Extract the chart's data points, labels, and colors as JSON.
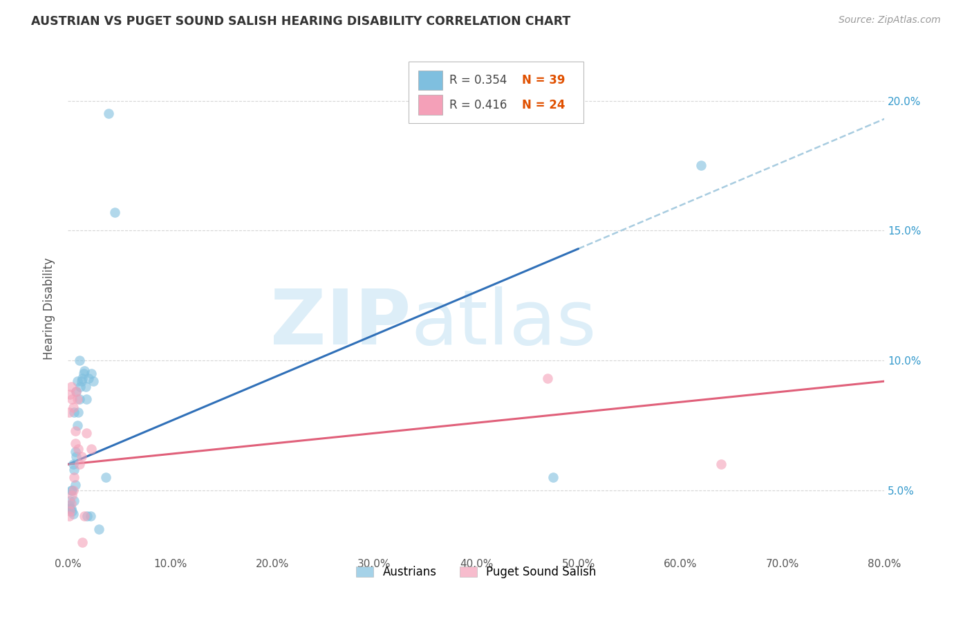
{
  "title": "AUSTRIAN VS PUGET SOUND SALISH HEARING DISABILITY CORRELATION CHART",
  "source": "Source: ZipAtlas.com",
  "ylabel": "Hearing Disability",
  "xlim": [
    0.0,
    0.8
  ],
  "ylim": [
    0.025,
    0.215
  ],
  "austrians_color": "#7fbfdf",
  "puget_color": "#f4a0b8",
  "blue_line_color": "#3070b8",
  "pink_line_color": "#e0607a",
  "dashed_line_color": "#a8cce0",
  "legend_R_austrians": "R = 0.354",
  "legend_N_austrians": "N = 39",
  "legend_R_puget": "R = 0.416",
  "legend_N_puget": "N = 24",
  "background_color": "#ffffff",
  "grid_color": "#cccccc",
  "watermark_zip": "ZIP",
  "watermark_atlas": "atlas",
  "watermark_color": "#ddeef8",
  "austrians_x": [
    0.001,
    0.002,
    0.002,
    0.003,
    0.003,
    0.004,
    0.004,
    0.005,
    0.005,
    0.006,
    0.006,
    0.006,
    0.007,
    0.007,
    0.008,
    0.008,
    0.009,
    0.009,
    0.01,
    0.011,
    0.011,
    0.012,
    0.013,
    0.014,
    0.015,
    0.016,
    0.017,
    0.018,
    0.019,
    0.02,
    0.022,
    0.023,
    0.025,
    0.03,
    0.037,
    0.04,
    0.046,
    0.475,
    0.62
  ],
  "austrians_y": [
    0.044,
    0.043,
    0.046,
    0.043,
    0.05,
    0.042,
    0.05,
    0.041,
    0.06,
    0.046,
    0.058,
    0.08,
    0.052,
    0.065,
    0.063,
    0.088,
    0.075,
    0.092,
    0.08,
    0.085,
    0.1,
    0.09,
    0.092,
    0.093,
    0.095,
    0.096,
    0.09,
    0.085,
    0.04,
    0.093,
    0.04,
    0.095,
    0.092,
    0.035,
    0.055,
    0.195,
    0.157,
    0.055,
    0.175
  ],
  "puget_x": [
    0.001,
    0.001,
    0.002,
    0.002,
    0.003,
    0.003,
    0.004,
    0.004,
    0.005,
    0.005,
    0.006,
    0.007,
    0.007,
    0.008,
    0.009,
    0.01,
    0.011,
    0.013,
    0.014,
    0.016,
    0.018,
    0.023,
    0.47,
    0.64
  ],
  "puget_y": [
    0.04,
    0.08,
    0.042,
    0.087,
    0.045,
    0.09,
    0.048,
    0.085,
    0.05,
    0.082,
    0.055,
    0.068,
    0.073,
    0.088,
    0.085,
    0.066,
    0.06,
    0.063,
    0.03,
    0.04,
    0.072,
    0.066,
    0.093,
    0.06
  ],
  "blue_line_x": [
    0.0,
    0.5
  ],
  "blue_line_y": [
    0.06,
    0.143
  ],
  "dashed_line_x": [
    0.5,
    0.8
  ],
  "dashed_line_y": [
    0.143,
    0.193
  ],
  "pink_line_x": [
    0.0,
    0.8
  ],
  "pink_line_y": [
    0.06,
    0.092
  ]
}
